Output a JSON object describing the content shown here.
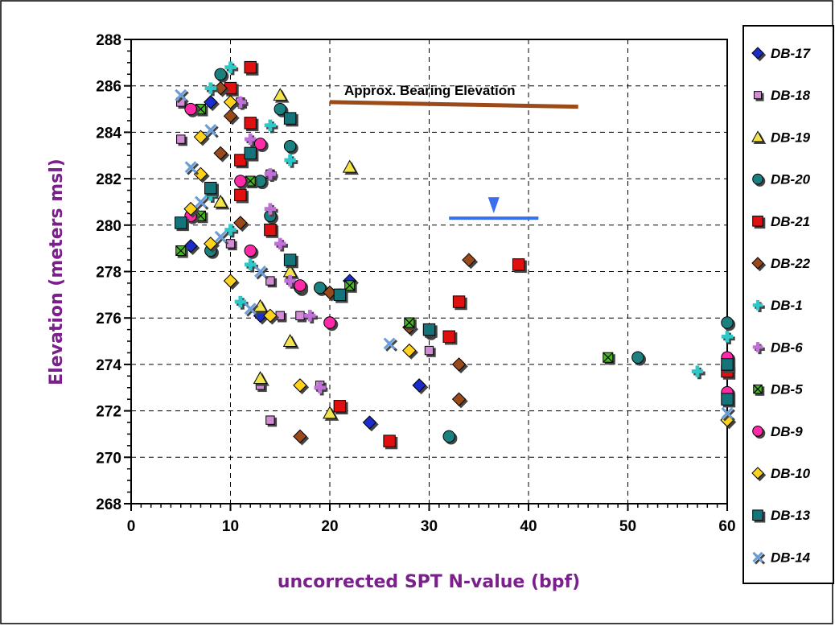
{
  "chart_data": {
    "type": "scatter",
    "xlabel": "uncorrected SPT N-value (bpf)",
    "ylabel": "Elevation (meters msl)",
    "xlim": [
      0,
      60
    ],
    "ylim": [
      268,
      288
    ],
    "x_ticks": [
      0,
      10,
      20,
      30,
      40,
      50,
      60
    ],
    "y_ticks": [
      268,
      270,
      272,
      274,
      276,
      278,
      280,
      282,
      284,
      286,
      288
    ],
    "grid": true,
    "legend_position": "right",
    "axis_title_color": "#7a1f8c",
    "annotations": [
      {
        "text": "Approx. Bearing Elevation",
        "line_from": [
          20,
          285.3
        ],
        "line_to": [
          45,
          285.1
        ],
        "color": "#9c4a18"
      },
      {
        "text": "",
        "water_table_line_from": [
          32,
          280.3
        ],
        "water_table_line_to": [
          41,
          280.3
        ],
        "marker_x": 36.5,
        "color": "#3a6ef0"
      }
    ],
    "series": [
      {
        "name": "DB-17",
        "marker": "diamond",
        "color": "#1a2ccc",
        "points": [
          [
            8,
            285.3
          ],
          [
            6,
            279.1
          ],
          [
            13,
            276.1
          ],
          [
            22,
            277.6
          ],
          [
            29,
            273.1
          ],
          [
            24,
            271.5
          ]
        ]
      },
      {
        "name": "DB-18",
        "marker": "square-sm",
        "color": "#d28cd6",
        "points": [
          [
            5,
            285.3
          ],
          [
            5,
            283.7
          ],
          [
            10,
            279.2
          ],
          [
            14,
            277.6
          ],
          [
            17,
            276.1
          ],
          [
            15,
            276.1
          ],
          [
            13,
            273.1
          ],
          [
            19,
            273.1
          ],
          [
            14,
            271.6
          ],
          [
            30,
            274.6
          ],
          [
            11,
            285.3
          ],
          [
            14,
            282.2
          ]
        ]
      },
      {
        "name": "DB-19",
        "marker": "triangle",
        "color": "#f2e44a",
        "points": [
          [
            15,
            285.6
          ],
          [
            9,
            281.0
          ],
          [
            22,
            282.5
          ],
          [
            16,
            278.0
          ],
          [
            13,
            276.5
          ],
          [
            16,
            275.0
          ],
          [
            13,
            273.4
          ],
          [
            20,
            271.9
          ]
        ]
      },
      {
        "name": "DB-20",
        "marker": "circle",
        "color": "#1b8080",
        "points": [
          [
            9,
            286.5
          ],
          [
            15,
            285.0
          ],
          [
            16,
            283.4
          ],
          [
            13,
            281.9
          ],
          [
            14,
            280.4
          ],
          [
            8,
            278.9
          ],
          [
            17,
            277.3
          ],
          [
            19,
            277.3
          ],
          [
            21,
            277.0
          ],
          [
            20,
            275.8
          ],
          [
            30,
            275.4
          ],
          [
            32,
            270.9
          ],
          [
            51,
            274.3
          ],
          [
            60,
            275.8
          ]
        ]
      },
      {
        "name": "DB-21",
        "marker": "square",
        "color": "#e01010",
        "points": [
          [
            12,
            286.8
          ],
          [
            10,
            285.9
          ],
          [
            12,
            284.4
          ],
          [
            11,
            282.8
          ],
          [
            11,
            281.3
          ],
          [
            14,
            279.8
          ],
          [
            21,
            272.2
          ],
          [
            26,
            270.7
          ],
          [
            33,
            276.7
          ],
          [
            32,
            275.2
          ],
          [
            39,
            278.3
          ],
          [
            60,
            273.7
          ]
        ]
      },
      {
        "name": "DB-22",
        "marker": "diamond",
        "color": "#9a4a1a",
        "points": [
          [
            9,
            285.9
          ],
          [
            10,
            284.7
          ],
          [
            9,
            283.1
          ],
          [
            11,
            280.1
          ],
          [
            20,
            277.1
          ],
          [
            28,
            275.6
          ],
          [
            34,
            278.5
          ],
          [
            33,
            274.0
          ],
          [
            33,
            272.5
          ],
          [
            17,
            270.9
          ]
        ]
      },
      {
        "name": "DB-1",
        "marker": "plus",
        "color": "#2ec8c8",
        "points": [
          [
            8,
            285.9
          ],
          [
            10,
            286.8
          ],
          [
            14,
            284.3
          ],
          [
            16,
            282.8
          ],
          [
            8,
            281.3
          ],
          [
            10,
            279.8
          ],
          [
            12,
            278.3
          ],
          [
            11,
            276.7
          ],
          [
            57,
            273.7
          ],
          [
            60,
            275.2
          ]
        ]
      },
      {
        "name": "DB-6",
        "marker": "plus",
        "color": "#c070d8",
        "points": [
          [
            11,
            285.3
          ],
          [
            12,
            283.7
          ],
          [
            14,
            282.2
          ],
          [
            14,
            280.7
          ],
          [
            15,
            279.2
          ],
          [
            16,
            277.6
          ],
          [
            18,
            276.1
          ],
          [
            19,
            273.0
          ]
        ]
      },
      {
        "name": "DB-5",
        "marker": "xbox",
        "color": "#48b828",
        "points": [
          [
            7,
            285.0
          ],
          [
            12,
            281.9
          ],
          [
            7,
            280.4
          ],
          [
            5,
            278.9
          ],
          [
            22,
            277.4
          ],
          [
            28,
            275.8
          ],
          [
            48,
            274.3
          ]
        ]
      },
      {
        "name": "DB-9",
        "marker": "circle",
        "color": "#ff2aa8",
        "points": [
          [
            6,
            285.0
          ],
          [
            13,
            283.5
          ],
          [
            11,
            281.9
          ],
          [
            6,
            280.4
          ],
          [
            12,
            278.9
          ],
          [
            17,
            277.4
          ],
          [
            20,
            275.8
          ],
          [
            60,
            274.3
          ],
          [
            60,
            272.8
          ]
        ]
      },
      {
        "name": "DB-10",
        "marker": "diamond",
        "color": "#ffd21e",
        "points": [
          [
            10,
            285.3
          ],
          [
            7,
            283.8
          ],
          [
            7,
            282.2
          ],
          [
            6,
            280.7
          ],
          [
            8,
            279.2
          ],
          [
            10,
            277.6
          ],
          [
            14,
            276.1
          ],
          [
            17,
            273.1
          ],
          [
            28,
            274.6
          ],
          [
            60,
            271.6
          ]
        ]
      },
      {
        "name": "DB-13",
        "marker": "square",
        "color": "#15737a",
        "points": [
          [
            16,
            284.6
          ],
          [
            12,
            283.1
          ],
          [
            8,
            281.6
          ],
          [
            5,
            280.1
          ],
          [
            16,
            278.5
          ],
          [
            21,
            277.0
          ],
          [
            30,
            275.5
          ],
          [
            60,
            274.0
          ],
          [
            60,
            272.5
          ]
        ]
      },
      {
        "name": "DB-14",
        "marker": "x",
        "color": "#6a9ed8",
        "points": [
          [
            5,
            285.6
          ],
          [
            8,
            284.1
          ],
          [
            6,
            282.5
          ],
          [
            7,
            281.0
          ],
          [
            9,
            279.5
          ],
          [
            13,
            278.0
          ],
          [
            12,
            276.4
          ],
          [
            26,
            274.9
          ],
          [
            60,
            271.9
          ]
        ]
      }
    ]
  }
}
